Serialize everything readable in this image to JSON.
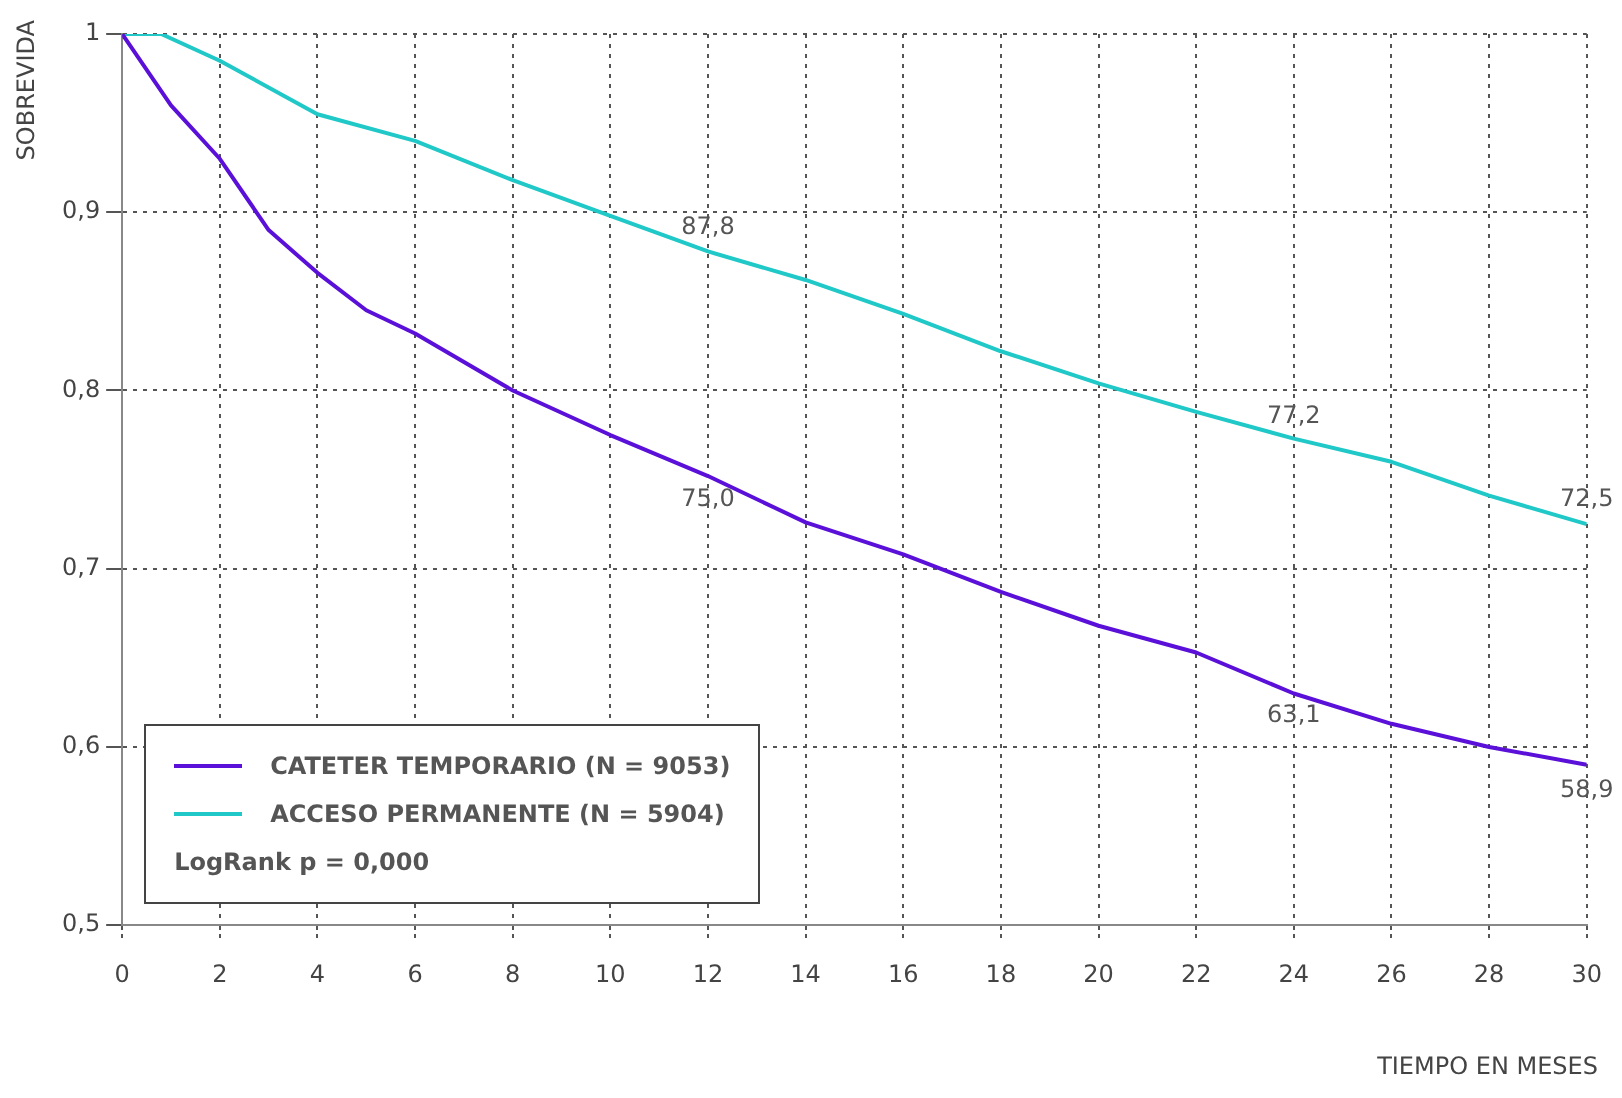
{
  "chart_data": {
    "type": "line",
    "ylabel": "SOBREVIDA",
    "xlabel": "TIEMPO EN MESES",
    "xlim": [
      0,
      30
    ],
    "xticks": [
      0,
      2,
      4,
      6,
      8,
      10,
      12,
      14,
      16,
      18,
      20,
      22,
      24,
      26,
      28,
      30
    ],
    "ylim": [
      0.5,
      1
    ],
    "yticks": [
      {
        "value": 0.5,
        "label": "0,5"
      },
      {
        "value": 0.6,
        "label": "0,6"
      },
      {
        "value": 0.7,
        "label": "0,7"
      },
      {
        "value": 0.8,
        "label": "0,8"
      },
      {
        "value": 0.9,
        "label": "0,9"
      },
      1
    ],
    "grid": true,
    "legend": "bottom left",
    "marker": "none",
    "line_style": "solid",
    "series": [
      {
        "name": "CATETER TEMPORARIO (N = 9053)",
        "color": "#5a10d8",
        "x": [
          0,
          1,
          2,
          3,
          4,
          5,
          6,
          8,
          10,
          12,
          14,
          16,
          18,
          20,
          22,
          24,
          26,
          28,
          30
        ],
        "values": [
          1,
          0.96,
          0.93,
          0.89,
          0.866,
          0.845,
          0.832,
          0.8,
          0.775,
          0.752,
          0.726,
          0.708,
          0.687,
          0.668,
          0.653,
          0.63,
          0.613,
          0.6,
          0.59
        ]
      },
      {
        "name": "ACCESO PERMANENTE (N = 5904)",
        "color": "#20c8c8",
        "x": [
          0,
          0.8,
          2,
          4,
          6,
          8,
          10,
          12,
          14,
          16,
          18,
          20,
          22,
          24,
          26,
          28,
          29,
          30
        ],
        "values": [
          1,
          1,
          0.985,
          0.955,
          0.94,
          0.918,
          0.898,
          0.878,
          0.862,
          0.843,
          0.822,
          0.804,
          0.788,
          0.773,
          0.76,
          0.741,
          0.733,
          0.725
        ]
      }
    ],
    "annotations": [
      {
        "text": "87,8",
        "x": 12,
        "y": 0.878
      },
      {
        "text": "75,0",
        "x": 12,
        "y": 0.752
      },
      {
        "text": "77,2",
        "x": 24,
        "y": 0.772
      },
      {
        "text": "63,1",
        "x": 24,
        "y": 0.631
      },
      {
        "text": "72,5",
        "x": 30,
        "y": 0.725
      },
      {
        "text": "58,9",
        "x": 30,
        "y": 0.589
      },
      "LogRank p = 0,000"
    ]
  }
}
